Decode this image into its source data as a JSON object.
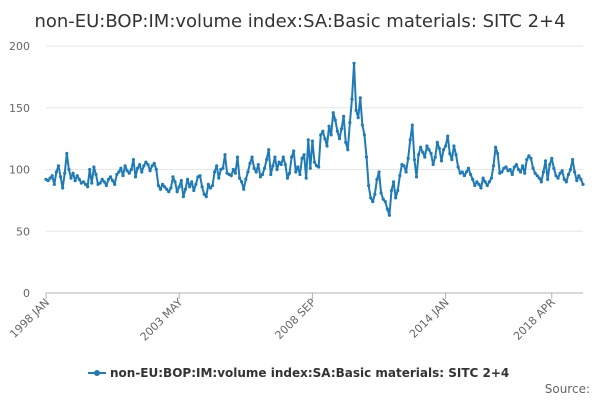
{
  "chart_data": {
    "type": "line",
    "title": "non-EU:BOP:IM:volume index:SA:Basic materials: SITC 2+4",
    "xlabel": "",
    "ylabel": "",
    "ylim": [
      0,
      200
    ],
    "yticks": [
      0,
      50,
      100,
      150,
      200
    ],
    "x_tick_labels": [
      "1998 JAN",
      "2003 MAY",
      "2008 SEP",
      "2014 JAN",
      "2018 APR"
    ],
    "x_tick_indices": [
      0,
      64,
      128,
      192,
      243
    ],
    "legend": {
      "position": "bottom",
      "entries": [
        "non-EU:BOP:IM:volume index:SA:Basic materials: SITC 2+4"
      ]
    },
    "grid": "horizontal",
    "series_color": "#1f7bb6",
    "source_label": "Source:",
    "series": [
      {
        "name": "non-EU:BOP:IM:volume index:SA:Basic materials: SITC 2+4",
        "values": [
          92,
          91,
          93,
          95,
          88,
          98,
          103,
          94,
          85,
          97,
          113,
          100,
          93,
          97,
          91,
          95,
          92,
          89,
          90,
          88,
          86,
          100,
          89,
          102,
          96,
          88,
          89,
          92,
          90,
          87,
          92,
          94,
          91,
          88,
          96,
          98,
          101,
          95,
          103,
          99,
          97,
          100,
          108,
          94,
          101,
          104,
          98,
          103,
          106,
          104,
          99,
          103,
          105,
          100,
          87,
          84,
          88,
          86,
          84,
          82,
          85,
          94,
          90,
          82,
          86,
          91,
          78,
          84,
          92,
          86,
          90,
          83,
          88,
          94,
          95,
          86,
          80,
          78,
          88,
          85,
          87,
          98,
          103,
          93,
          100,
          101,
          112,
          97,
          96,
          95,
          100,
          97,
          110,
          93,
          90,
          84,
          92,
          98,
          105,
          110,
          101,
          98,
          104,
          94,
          96,
          101,
          108,
          116,
          96,
          103,
          110,
          100,
          106,
          104,
          110,
          104,
          93,
          97,
          110,
          115,
          98,
          102,
          96,
          109,
          112,
          93,
          124,
          101,
          123,
          106,
          103,
          102,
          128,
          131,
          125,
          119,
          135,
          128,
          146,
          140,
          131,
          125,
          133,
          143,
          122,
          116,
          138,
          157,
          186,
          148,
          142,
          158,
          136,
          128,
          110,
          87,
          77,
          74,
          80,
          92,
          98,
          81,
          76,
          74,
          68,
          63,
          83,
          90,
          77,
          83,
          95,
          104,
          103,
          98,
          109,
          124,
          136,
          108,
          94,
          112,
          118,
          114,
          110,
          119,
          116,
          113,
          104,
          110,
          122,
          117,
          107,
          116,
          119,
          127,
          113,
          108,
          119,
          112,
          102,
          97,
          98,
          95,
          98,
          101,
          96,
          92,
          87,
          90,
          88,
          85,
          93,
          90,
          87,
          90,
          93,
          103,
          118,
          113,
          97,
          98,
          101,
          102,
          99,
          100,
          96,
          102,
          104,
          100,
          98,
          103,
          97,
          108,
          111,
          109,
          101,
          97,
          95,
          93,
          90,
          98,
          107,
          92,
          104,
          109,
          101,
          95,
          93,
          97,
          99,
          92,
          90,
          96,
          100,
          108,
          98,
          91,
          95,
          92,
          88
        ]
      }
    ]
  }
}
